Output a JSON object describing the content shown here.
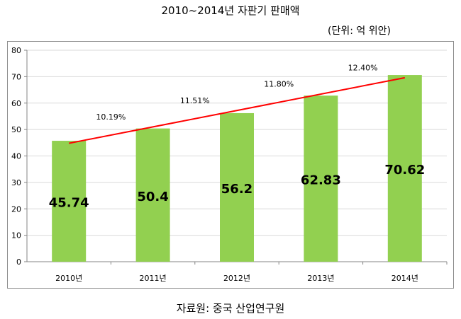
{
  "title": "2010~2014년 자판기 판매액",
  "unit": "(단위: 억 위안)",
  "source": "자료원: 중국 산업연구원",
  "colors": {
    "bar": "#92d050",
    "trend": "#ff0000",
    "grid": "#d9d9d9",
    "axis": "#868686"
  },
  "chart_data": {
    "type": "bar",
    "title": "2010~2014년 자판기 판매액",
    "xlabel": "",
    "ylabel": "",
    "ylim": [
      0,
      80
    ],
    "yticks": [
      0,
      10,
      20,
      30,
      40,
      50,
      60,
      70,
      80
    ],
    "grid": true,
    "categories": [
      "2010년",
      "2011년",
      "2012년",
      "2013년",
      "2014년"
    ],
    "values": [
      45.74,
      50.4,
      56.2,
      62.83,
      70.62
    ],
    "value_labels": [
      "45.74",
      "50.4",
      "56.2",
      "62.83",
      "70.62"
    ],
    "trendline": {
      "start": 44.8,
      "end": 69.6
    },
    "growth_labels": [
      "10.19%",
      "11.51%",
      "11.80%",
      "12.40%"
    ]
  }
}
